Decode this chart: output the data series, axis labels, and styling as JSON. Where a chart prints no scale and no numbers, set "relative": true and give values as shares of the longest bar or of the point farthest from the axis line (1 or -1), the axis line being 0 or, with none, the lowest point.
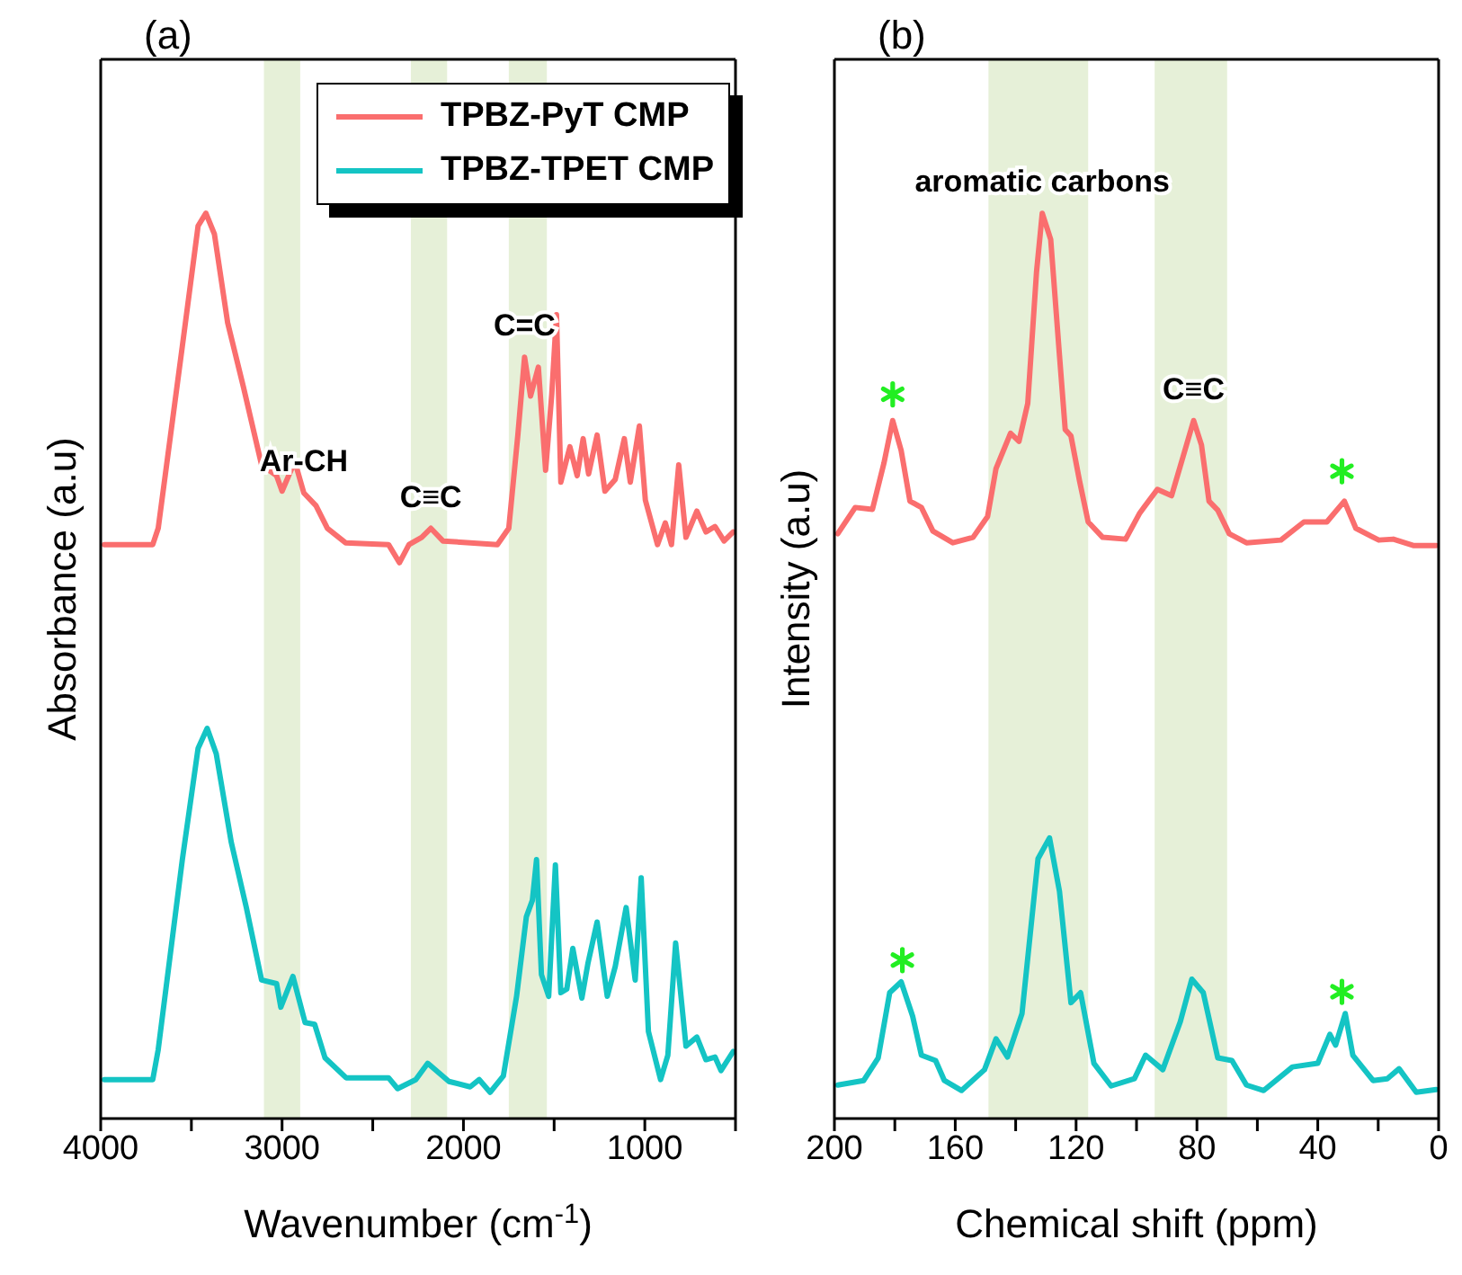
{
  "chart_data": [
    {
      "type": "line",
      "title": "(a)",
      "xlabel": "Wavenumber (cm$^{-1}$)",
      "ylabel": "Absorbance (a.u)",
      "relative": true,
      "legend": "top right",
      "xlim": [
        4000,
        500
      ],
      "xticks": [
        4000,
        {
          "value": 3500,
          "label": null
        },
        3000,
        {
          "value": 2500,
          "label": null
        },
        2000,
        {
          "value": 1500,
          "label": null
        },
        1000,
        {
          "value": 500,
          "label": null
        }
      ],
      "series": [
        {
          "name": "TPBZ-PyT CMP",
          "color": "#fa6e6e",
          "x": [
            3980,
            3713,
            3683,
            3550,
            3463,
            3420,
            3373,
            3300,
            3213,
            3113,
            3030,
            3000,
            2930,
            2880,
            2813,
            2750,
            2650,
            2413,
            2353,
            2300,
            2230,
            2180,
            2113,
            1813,
            1750,
            1700,
            1663,
            1630,
            1587,
            1547,
            1513,
            1487,
            1463,
            1413,
            1373,
            1340,
            1310,
            1263,
            1220,
            1163,
            1113,
            1080,
            1030,
            997,
            930,
            887,
            853,
            813,
            773,
            713,
            663,
            613,
            563,
            513
          ],
          "values": [
            0.634,
            0.634,
            0.652,
            0.853,
            0.986,
            1.0,
            0.977,
            0.879,
            0.808,
            0.722,
            0.71,
            0.693,
            0.726,
            0.691,
            0.677,
            0.652,
            0.636,
            0.634,
            0.614,
            0.634,
            0.642,
            0.652,
            0.638,
            0.634,
            0.652,
            0.755,
            0.841,
            0.798,
            0.83,
            0.716,
            0.8,
            0.888,
            0.703,
            0.742,
            0.71,
            0.751,
            0.712,
            0.755,
            0.693,
            0.706,
            0.751,
            0.703,
            0.765,
            0.683,
            0.634,
            0.658,
            0.634,
            0.722,
            0.642,
            0.671,
            0.648,
            0.654,
            0.638,
            0.648
          ]
        },
        {
          "name": "TPBZ-TPET CMP",
          "color": "#14c4c4",
          "x": [
            3980,
            3713,
            3683,
            3550,
            3463,
            3413,
            3363,
            3280,
            3197,
            3113,
            3030,
            3007,
            2940,
            2873,
            2820,
            2763,
            2647,
            2413,
            2363,
            2263,
            2197,
            2080,
            1963,
            1913,
            1853,
            1780,
            1707,
            1653,
            1620,
            1597,
            1570,
            1530,
            1493,
            1463,
            1430,
            1397,
            1347,
            1313,
            1263,
            1207,
            1163,
            1103,
            1053,
            1020,
            980,
            913,
            873,
            830,
            773,
            713,
            663,
            613,
            580,
            513
          ],
          "values": [
            0.043,
            0.043,
            0.076,
            0.286,
            0.409,
            0.431,
            0.403,
            0.305,
            0.233,
            0.153,
            0.149,
            0.123,
            0.157,
            0.106,
            0.104,
            0.067,
            0.045,
            0.045,
            0.033,
            0.043,
            0.061,
            0.041,
            0.035,
            0.043,
            0.029,
            0.047,
            0.135,
            0.223,
            0.241,
            0.286,
            0.159,
            0.135,
            0.28,
            0.139,
            0.143,
            0.188,
            0.133,
            0.172,
            0.217,
            0.135,
            0.168,
            0.233,
            0.153,
            0.266,
            0.096,
            0.043,
            0.07,
            0.194,
            0.08,
            0.09,
            0.065,
            0.068,
            0.053,
            0.074
          ]
        }
      ],
      "bands": [
        {
          "axis": "x",
          "from": 3100,
          "to": 2900,
          "color": "#e6f0d8"
        },
        {
          "axis": "x",
          "from": 2290,
          "to": 2090,
          "color": "#e6f0d8"
        },
        {
          "axis": "x",
          "from": 1750,
          "to": 1540,
          "color": "#e6f0d8"
        }
      ],
      "annotations": [
        {
          "text": "Ar-CH",
          "x": 2880,
          "y": 0.691
        },
        {
          "text": "C≡C",
          "x": 2180,
          "y": 0.652
        },
        {
          "text": "C=C",
          "x": 1663,
          "y": 0.841
        }
      ]
    },
    {
      "type": "line",
      "title": "(b)",
      "xlabel": "Chemical shift (ppm)",
      "ylabel": "Intensity (a.u)",
      "relative": true,
      "xlim": [
        200,
        0
      ],
      "xticks": [
        200,
        {
          "value": 180,
          "label": null
        },
        160,
        {
          "value": 140,
          "label": null
        },
        120,
        {
          "value": 100,
          "label": null
        },
        80,
        {
          "value": 60,
          "label": null
        },
        40,
        {
          "value": 20,
          "label": null
        },
        0
      ],
      "series": [
        {
          "color": "#fa6e6e",
          "x": [
            198.9,
            193.1,
            187.4,
            183.6,
            180.7,
            177.9,
            175,
            171.2,
            167.4,
            160.8,
            154.1,
            149.3,
            146.5,
            141.7,
            138.9,
            136,
            133.1,
            131.2,
            128.4,
            125.5,
            123.6,
            121.7,
            118.9,
            116,
            111.2,
            103.6,
            98.9,
            93.1,
            88.4,
            84.6,
            81.1,
            78.5,
            76,
            73.1,
            69.3,
            63.6,
            52.2,
            44.6,
            37,
            31.2,
            27.4,
            19.8,
            15,
            8.4,
            0.8
          ],
          "values": [
            0.646,
            0.675,
            0.673,
            0.724,
            0.771,
            0.738,
            0.682,
            0.675,
            0.649,
            0.636,
            0.642,
            0.665,
            0.718,
            0.757,
            0.748,
            0.79,
            0.935,
            1.0,
            0.971,
            0.843,
            0.761,
            0.754,
            0.705,
            0.659,
            0.642,
            0.64,
            0.669,
            0.695,
            0.688,
            0.731,
            0.771,
            0.744,
            0.682,
            0.672,
            0.646,
            0.636,
            0.639,
            0.659,
            0.659,
            0.682,
            0.652,
            0.639,
            0.64,
            0.633,
            0.633
          ]
        },
        {
          "type": "scatter",
          "marker": "cross",
          "color": "#22ee22",
          "x": [
            180.7,
            32,
            177.5,
            32
          ],
          "values": [
            0.8,
            0.715,
            0.175,
            0.14
          ]
        },
        {
          "color": "#14c4c4",
          "x": [
            198.9,
            190.3,
            185.5,
            181.7,
            177.9,
            174.1,
            171.2,
            166.5,
            163.6,
            157.9,
            150.3,
            146.5,
            142.7,
            137.9,
            132.6,
            128.8,
            125.5,
            121.7,
            118.5,
            114.1,
            108.4,
            100.7,
            97,
            91.3,
            85.5,
            81.7,
            77.9,
            73.1,
            68.4,
            63.6,
            57.9,
            48.4,
            40,
            36,
            34.1,
            30.9,
            28.4,
            21.7,
            17,
            13.1,
            7.4,
            0.8
          ],
          "values": [
            0.037,
            0.042,
            0.067,
            0.139,
            0.151,
            0.113,
            0.07,
            0.064,
            0.042,
            0.031,
            0.054,
            0.088,
            0.068,
            0.116,
            0.287,
            0.31,
            0.251,
            0.128,
            0.139,
            0.061,
            0.036,
            0.044,
            0.07,
            0.054,
            0.107,
            0.154,
            0.139,
            0.067,
            0.064,
            0.037,
            0.031,
            0.057,
            0.061,
            0.093,
            0.081,
            0.116,
            0.07,
            0.042,
            0.044,
            0.055,
            0.029,
            0.032
          ]
        }
      ],
      "bands": [
        {
          "axis": "x",
          "from": 149,
          "to": 116,
          "color": "#e6f0d8"
        },
        {
          "axis": "x",
          "from": 94,
          "to": 70,
          "color": "#e6f0d8"
        }
      ],
      "annotations": [
        {
          "text": "aromatic carbons",
          "x": 131.2,
          "y": 1.0
        },
        {
          "text": "C≡C",
          "x": 81.1,
          "y": 0.771
        }
      ]
    }
  ]
}
